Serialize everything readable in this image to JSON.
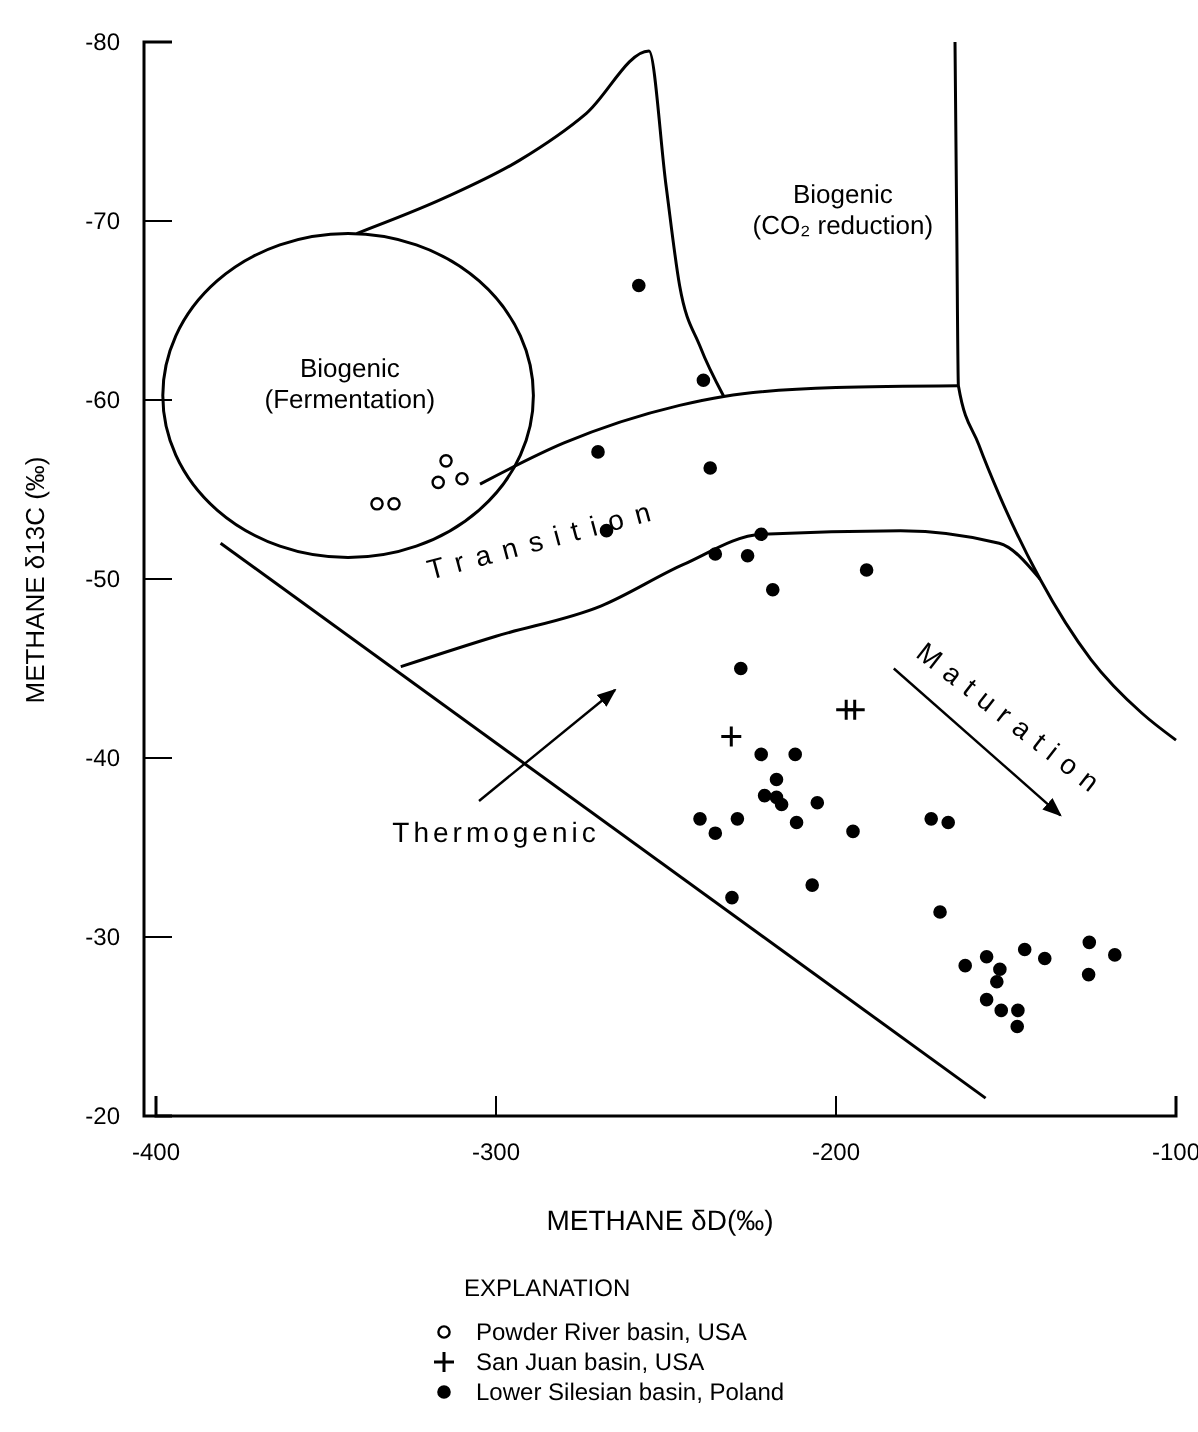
{
  "chart_data": {
    "type": "scatter",
    "xlabel": "METHANE δD(‰)",
    "ylabel": "METHANE δ13C (‰)",
    "legend_title": "EXPLANATION",
    "legend": "bottom",
    "xlim": [
      -400,
      -100
    ],
    "ylim": [
      -20,
      -80
    ],
    "xticks": [
      -400,
      -300,
      -200,
      -100
    ],
    "yticks": [
      -80,
      -70,
      -60,
      -50,
      -40,
      -30,
      -20
    ],
    "grid": false,
    "annotations": [
      "Biogenic\n(Fermentation)",
      "Biogenic\n(CO₂ reduction)",
      "Transition",
      "Thermogenic",
      "Maturation"
    ],
    "series": [
      {
        "name": "Powder River basin, USA",
        "color": "#ffffff",
        "marker": "circle",
        "x": [
          -335,
          -330,
          -314.7,
          -317,
          -310
        ],
        "values": [
          -54.2,
          -54.2,
          -56.6,
          -55.4,
          -55.6
        ]
      },
      {
        "name": "San Juan basin, USA",
        "color": "#000000",
        "marker": "cross",
        "x": [
          -230.8,
          -197,
          -194.5
        ],
        "values": [
          -41.2,
          -42.7,
          -42.7
        ]
      },
      {
        "name": "Lower Silesian basin, Poland",
        "color": "#000000",
        "marker": "circle",
        "x": [
          -258,
          -239,
          -270,
          -237,
          -267.5,
          -222,
          -235.5,
          -226,
          -191,
          -218.6,
          -228,
          -222,
          -212,
          -217.5,
          -221,
          -217.5,
          -216,
          -205.5,
          -240,
          -229,
          -235.5,
          -211.6,
          -195,
          -172,
          -167,
          -207,
          -230.6,
          -169.4,
          -162,
          -155.7,
          -151.8,
          -152.7,
          -155.7,
          -151.4,
          -146.5,
          -146.7,
          -144.5,
          -138.6,
          -125.5,
          -118,
          -125.7
        ],
        "values": [
          -66.4,
          -61.1,
          -57.1,
          -56.2,
          -52.7,
          -52.5,
          -51.4,
          -51.3,
          -50.5,
          -49.4,
          -45,
          -40.2,
          -40.2,
          -38.8,
          -37.9,
          -37.8,
          -37.4,
          -37.5,
          -36.6,
          -36.6,
          -35.8,
          -36.4,
          -35.9,
          -36.6,
          -36.4,
          -32.9,
          -32.2,
          -31.4,
          -28.4,
          -28.9,
          -28.2,
          -27.5,
          -26.5,
          -25.9,
          -25.9,
          -25,
          -29.3,
          -28.8,
          -29.7,
          -29,
          -27.9
        ]
      },
      {
        "type": "line",
        "color": "#000000",
        "marker": "none",
        "x": [
          -381,
          -156
        ],
        "values": [
          -52,
          -21
        ]
      },
      {
        "type": "line",
        "color": "#000000",
        "marker": "none",
        "x": [
          -341,
          -315,
          -293,
          -273.5,
          -255,
          -250,
          -246,
          -240,
          -233
        ],
        "values": [
          -69.3,
          -71.3,
          -73.4,
          -76,
          -79.5,
          -72,
          -66.4,
          -63,
          -60.2
        ]
      },
      {
        "type": "line",
        "color": "#000000",
        "marker": "none",
        "x": [
          -304.7,
          -280,
          -246,
          -233,
          -200,
          -164
        ],
        "values": [
          -55.3,
          -57.6,
          -59.7,
          -60.2,
          -60.7,
          -60.8
        ]
      },
      {
        "type": "line",
        "color": "#000000",
        "marker": "none",
        "x": [
          -165,
          -164.5,
          -164,
          -158,
          -152,
          -140,
          -125,
          -110,
          -100
        ],
        "values": [
          -80,
          -70,
          -60.8,
          -57.5,
          -54.7,
          -50,
          -45.5,
          -42.5,
          -41
        ]
      },
      {
        "type": "line",
        "color": "#000000",
        "marker": "none",
        "x": [
          -328,
          -300,
          -269,
          -245,
          -222,
          -181,
          -152,
          -140
        ],
        "values": [
          -45.1,
          -46.8,
          -48.5,
          -50.8,
          -52.5,
          -52.7,
          -52,
          -50
        ]
      }
    ]
  }
}
